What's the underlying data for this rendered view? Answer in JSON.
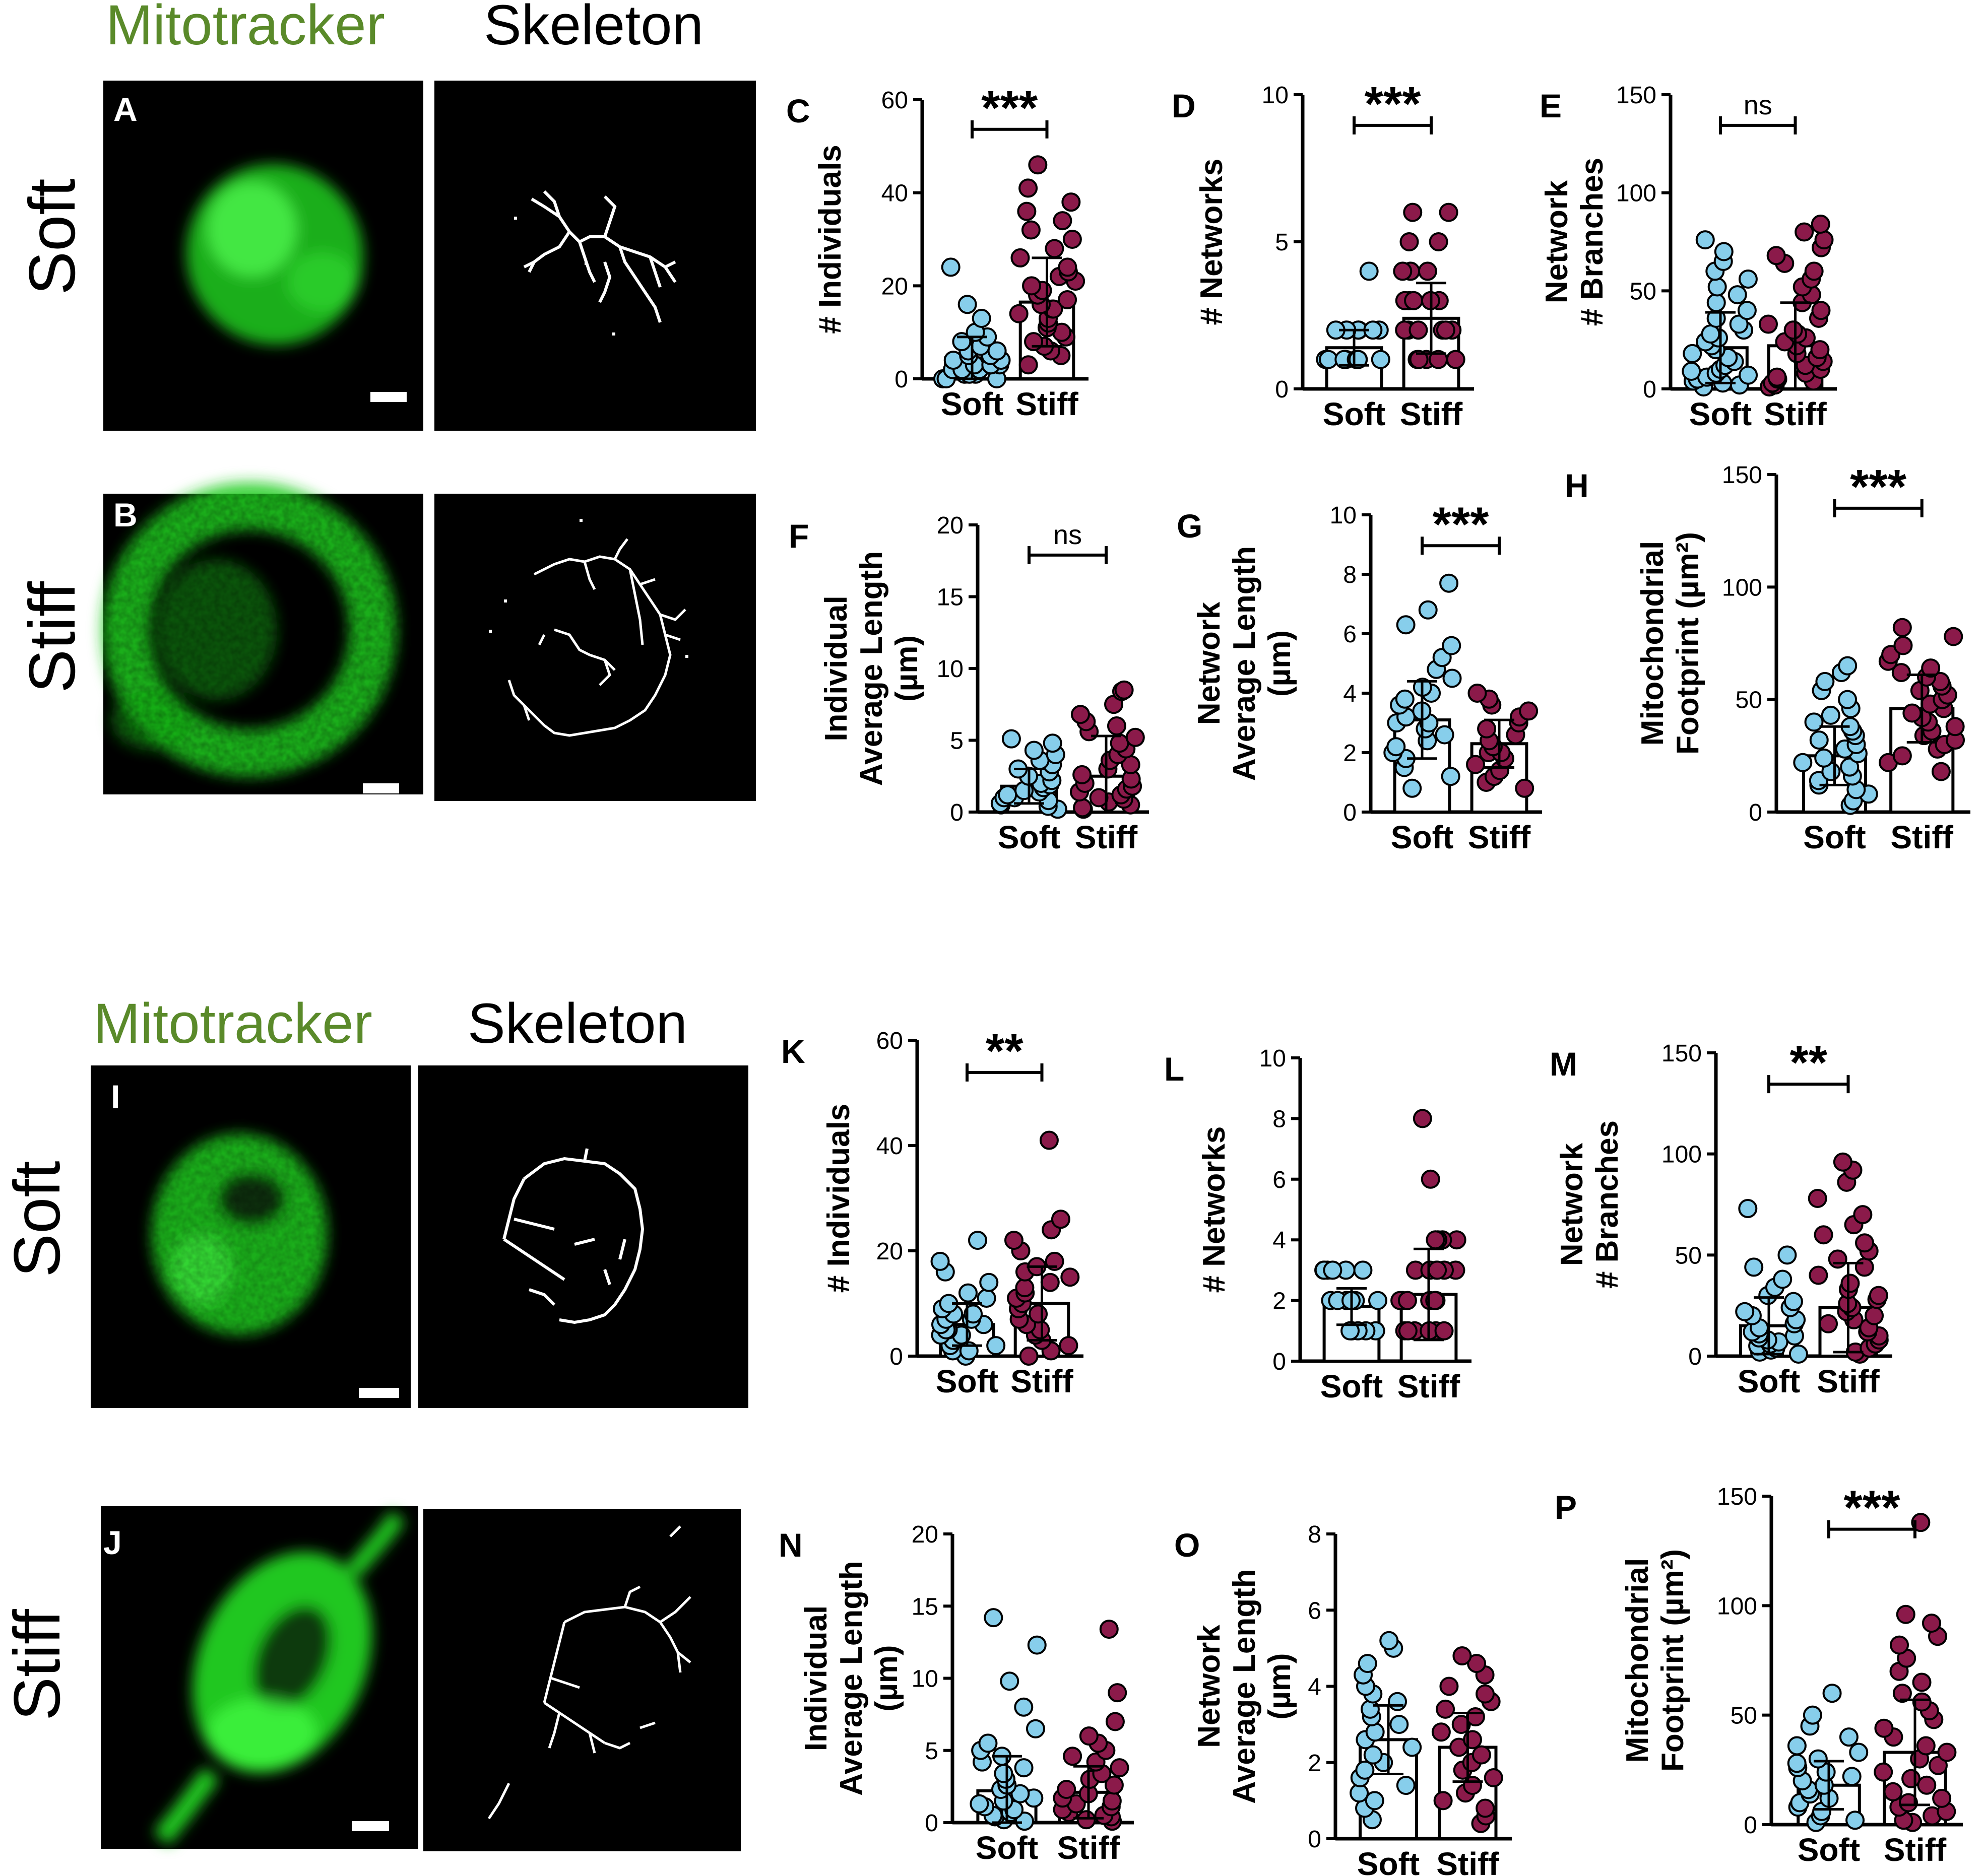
{
  "colors": {
    "mitotracker": "#5a8a2a",
    "soft_point": "#87ceeb",
    "stiff_point": "#8b1a4a",
    "fluor": "#22dd22"
  },
  "sections": [
    {
      "header_mito": "Mitotracker",
      "header_skel": "Skeleton",
      "rows": [
        {
          "row_label": "Soft",
          "panel_label": "A"
        },
        {
          "row_label": "Stiff",
          "panel_label": "B"
        }
      ]
    },
    {
      "header_mito": "Mitotracker",
      "header_skel": "Skeleton",
      "rows": [
        {
          "row_label": "Soft",
          "panel_label": "I"
        },
        {
          "row_label": "Stiff",
          "panel_label": "J"
        }
      ]
    }
  ],
  "chart_data": [
    {
      "panel": "C",
      "type": "scatter",
      "ylabel": [
        "# Individuals"
      ],
      "yticks": [
        0,
        20,
        40,
        60
      ],
      "ylim": [
        0,
        60
      ],
      "categories": [
        "Soft",
        "Stiff"
      ],
      "means": [
        4.5,
        16.5
      ],
      "sd": [
        4.5,
        9.5
      ],
      "sig": "***",
      "soft_points": [
        0,
        0,
        0,
        1,
        1,
        1,
        2,
        2,
        2,
        3,
        3,
        3,
        4,
        4,
        5,
        5,
        6,
        6,
        7,
        8,
        9,
        10,
        13,
        16,
        24
      ],
      "stiff_points": [
        3,
        5,
        6,
        7,
        8,
        9,
        10,
        11,
        12,
        13,
        14,
        15,
        15,
        16,
        17,
        18,
        19,
        20,
        21,
        22,
        23,
        24,
        26,
        28,
        30,
        32,
        34,
        36,
        38,
        41,
        46
      ]
    },
    {
      "panel": "D",
      "type": "scatter",
      "ylabel": [
        "# Networks"
      ],
      "yticks": [
        0,
        5,
        10
      ],
      "ylim": [
        0,
        10
      ],
      "categories": [
        "Soft",
        "Stiff"
      ],
      "means": [
        1.4,
        2.4
      ],
      "sd": [
        0.6,
        1.2
      ],
      "sig": "***",
      "soft_points": [
        1,
        1,
        1,
        1,
        1,
        1,
        1,
        1,
        2,
        2,
        2,
        2,
        2,
        2,
        4
      ],
      "stiff_points": [
        1,
        1,
        1,
        1,
        1,
        1,
        2,
        2,
        2,
        2,
        2,
        2,
        3,
        3,
        3,
        3,
        3,
        4,
        4,
        4,
        5,
        5,
        6,
        6
      ]
    },
    {
      "panel": "E",
      "type": "scatter",
      "ylabel": [
        "Network",
        "# Branches"
      ],
      "yticks": [
        0,
        50,
        100,
        150
      ],
      "ylim": [
        0,
        150
      ],
      "categories": [
        "Soft",
        "Stiff"
      ],
      "means": [
        21,
        22
      ],
      "sd": [
        18,
        22
      ],
      "sig": "ns",
      "soft_points": [
        1,
        2,
        3,
        4,
        5,
        6,
        7,
        8,
        9,
        10,
        12,
        14,
        16,
        18,
        20,
        22,
        24,
        26,
        28,
        30,
        33,
        36,
        40,
        44,
        48,
        52,
        56,
        60,
        65,
        70,
        76
      ],
      "stiff_points": [
        1,
        2,
        3,
        4,
        5,
        6,
        8,
        10,
        12,
        14,
        16,
        18,
        20,
        22,
        24,
        26,
        28,
        30,
        33,
        36,
        40,
        44,
        48,
        52,
        56,
        60,
        64,
        68,
        72,
        76,
        80,
        84
      ]
    },
    {
      "panel": "F",
      "type": "scatter",
      "ylabel": [
        "Individual",
        "Average Length",
        "(µm)"
      ],
      "yticks": [
        0,
        5,
        10,
        15,
        20
      ],
      "ylim": [
        0,
        20
      ],
      "categories": [
        "Soft",
        "Stiff"
      ],
      "means": [
        1.8,
        2.5
      ],
      "sd": [
        1.2,
        2.8
      ],
      "sig": "ns",
      "soft_points": [
        0.2,
        0.4,
        0.5,
        0.6,
        0.8,
        1,
        1,
        1.2,
        1.4,
        1.5,
        1.7,
        1.9,
        2,
        2.2,
        2.5,
        2.8,
        3,
        3.3,
        3.6,
        4,
        4.3,
        4.8,
        5.1
      ],
      "stiff_points": [
        0.2,
        0.3,
        0.5,
        0.7,
        0.9,
        1,
        1.2,
        1.4,
        1.6,
        1.8,
        2,
        2.3,
        2.6,
        3,
        3.3,
        3.6,
        4,
        4.4,
        4.8,
        5.2,
        5.6,
        6,
        6.3,
        6.8,
        7.5,
        8.4,
        8.5
      ]
    },
    {
      "panel": "G",
      "type": "scatter",
      "ylabel": [
        "Network",
        "Average Length",
        "(µm)"
      ],
      "yticks": [
        0,
        2,
        4,
        6,
        8,
        10
      ],
      "ylim": [
        0,
        10
      ],
      "categories": [
        "Soft",
        "Stiff"
      ],
      "means": [
        3.1,
        2.3
      ],
      "sd": [
        1.3,
        0.8
      ],
      "sig": "***",
      "soft_points": [
        0.8,
        1.2,
        1.5,
        1.8,
        2,
        2.2,
        2.4,
        2.6,
        2.8,
        3,
        3,
        3.2,
        3.4,
        3.6,
        3.8,
        4,
        4.2,
        4.5,
        4.8,
        5.2,
        5.6,
        6.3,
        6.8,
        7.7
      ],
      "stiff_points": [
        0.8,
        1,
        1.2,
        1.4,
        1.6,
        1.8,
        2,
        2,
        2.2,
        2.4,
        2.6,
        2.8,
        3,
        3.2,
        3.4,
        3.6,
        3.8,
        4
      ]
    },
    {
      "panel": "H",
      "type": "scatter",
      "ylabel": [
        "Mitochondrial",
        "Footprint (µm²)"
      ],
      "yticks": [
        0,
        50,
        100,
        150
      ],
      "ylim": [
        0,
        150
      ],
      "categories": [
        "Soft",
        "Stiff"
      ],
      "means": [
        25,
        46
      ],
      "sd": [
        13,
        15
      ],
      "sig": "***",
      "soft_points": [
        3,
        5,
        8,
        10,
        12,
        14,
        16,
        18,
        20,
        22,
        24,
        26,
        28,
        30,
        32,
        34,
        36,
        38,
        40,
        43,
        46,
        50,
        54,
        58,
        62,
        65
      ],
      "stiff_points": [
        18,
        22,
        25,
        28,
        30,
        32,
        34,
        36,
        38,
        40,
        42,
        44,
        46,
        48,
        50,
        52,
        54,
        56,
        58,
        60,
        62,
        64,
        67,
        70,
        74,
        78,
        82
      ]
    },
    {
      "panel": "K",
      "type": "scatter",
      "ylabel": [
        "# Individuals"
      ],
      "yticks": [
        0,
        20,
        40,
        60
      ],
      "ylim": [
        0,
        60
      ],
      "categories": [
        "Soft",
        "Stiff"
      ],
      "means": [
        6,
        10
      ],
      "sd": [
        4,
        7
      ],
      "sig": "**",
      "soft_points": [
        0,
        1,
        1,
        2,
        2,
        3,
        3,
        4,
        4,
        5,
        5,
        6,
        6,
        7,
        7,
        8,
        8,
        9,
        10,
        11,
        12,
        14,
        16,
        18,
        22
      ],
      "stiff_points": [
        0,
        1,
        2,
        3,
        4,
        5,
        6,
        7,
        8,
        9,
        10,
        11,
        12,
        13,
        14,
        15,
        16,
        17,
        18,
        20,
        22,
        24,
        26,
        41
      ]
    },
    {
      "panel": "L",
      "type": "scatter",
      "ylabel": [
        "# Networks"
      ],
      "yticks": [
        0,
        2,
        4,
        6,
        8,
        10
      ],
      "ylim": [
        0,
        10
      ],
      "categories": [
        "Soft",
        "Stiff"
      ],
      "means": [
        1.8,
        2.2
      ],
      "sd": [
        0.6,
        1.5
      ],
      "sig": "",
      "soft_points": [
        1,
        1,
        1,
        1,
        1,
        1,
        2,
        2,
        2,
        2,
        2,
        2,
        3,
        3,
        3,
        3,
        3,
        3
      ],
      "stiff_points": [
        1,
        1,
        1,
        1,
        1,
        1,
        2,
        2,
        2,
        2,
        2,
        2,
        3,
        3,
        3,
        3,
        3,
        3,
        4,
        4,
        4,
        4,
        6,
        8
      ]
    },
    {
      "panel": "M",
      "type": "scatter",
      "ylabel": [
        "Network",
        "# Branches"
      ],
      "yticks": [
        0,
        50,
        100,
        150
      ],
      "ylim": [
        0,
        150
      ],
      "categories": [
        "Soft",
        "Stiff"
      ],
      "means": [
        15,
        24
      ],
      "sd": [
        14,
        22
      ],
      "sig": "**",
      "soft_points": [
        1,
        2,
        3,
        4,
        5,
        6,
        7,
        8,
        9,
        10,
        11,
        12,
        14,
        16,
        18,
        20,
        22,
        24,
        27,
        30,
        34,
        38,
        44,
        50,
        73
      ],
      "stiff_points": [
        1,
        2,
        4,
        6,
        8,
        10,
        12,
        14,
        16,
        18,
        20,
        22,
        24,
        26,
        28,
        30,
        33,
        36,
        40,
        44,
        48,
        52,
        56,
        60,
        65,
        70,
        78,
        86,
        92,
        96
      ]
    },
    {
      "panel": "N",
      "type": "scatter",
      "ylabel": [
        "Individual",
        "Average Length",
        "(µm)"
      ],
      "yticks": [
        0,
        5,
        10,
        15,
        20
      ],
      "ylim": [
        0,
        20
      ],
      "categories": [
        "Soft",
        "Stiff"
      ],
      "means": [
        2.2,
        2.1
      ],
      "sd": [
        2.4,
        1.8
      ],
      "sig": "",
      "soft_points": [
        0.1,
        0.2,
        0.4,
        0.5,
        0.7,
        0.9,
        1.1,
        1.3,
        1.5,
        1.7,
        2,
        2.3,
        2.6,
        3,
        3.4,
        3.8,
        4.2,
        4.6,
        5,
        5.5,
        6.5,
        8,
        9.8,
        12.3,
        14.2
      ],
      "stiff_points": [
        0.1,
        0.2,
        0.4,
        0.5,
        0.7,
        0.9,
        1.1,
        1.3,
        1.5,
        1.7,
        2,
        2.3,
        2.6,
        3,
        3.4,
        3.8,
        4.2,
        4.6,
        5,
        5.5,
        6,
        7,
        9,
        13.4
      ]
    },
    {
      "panel": "O",
      "type": "scatter",
      "ylabel": [
        "Network",
        "Average Length",
        "(µm)"
      ],
      "yticks": [
        0,
        2,
        4,
        6,
        8
      ],
      "ylim": [
        0,
        8
      ],
      "categories": [
        "Soft",
        "Stiff"
      ],
      "means": [
        2.6,
        2.4
      ],
      "sd": [
        0.9,
        0.9
      ],
      "sig": "",
      "soft_points": [
        0.5,
        0.8,
        1,
        1.2,
        1.4,
        1.6,
        1.8,
        2,
        2.2,
        2.4,
        2.6,
        2.8,
        3,
        3.2,
        3.4,
        3.6,
        3.8,
        4,
        4.3,
        4.6,
        5,
        5.2
      ],
      "stiff_points": [
        0.4,
        0.6,
        0.8,
        1,
        1.2,
        1.4,
        1.6,
        1.8,
        2,
        2.2,
        2.4,
        2.6,
        2.8,
        3,
        3.2,
        3.4,
        3.6,
        3.8,
        4,
        4.3,
        4.6,
        4.8
      ]
    },
    {
      "panel": "P",
      "type": "scatter",
      "ylabel": [
        "Mitochondrial",
        "Footprint (µm²)"
      ],
      "yticks": [
        0,
        50,
        100,
        150
      ],
      "ylim": [
        0,
        150
      ],
      "categories": [
        "Soft",
        "Stiff"
      ],
      "means": [
        18,
        33
      ],
      "sd": [
        11,
        24
      ],
      "sig": "***",
      "soft_points": [
        1,
        2,
        4,
        6,
        8,
        10,
        12,
        14,
        16,
        18,
        20,
        22,
        24,
        26,
        28,
        30,
        33,
        36,
        40,
        45,
        50,
        60
      ],
      "stiff_points": [
        1,
        2,
        4,
        6,
        8,
        10,
        12,
        15,
        18,
        21,
        24,
        27,
        30,
        33,
        36,
        40,
        44,
        48,
        52,
        56,
        60,
        65,
        70,
        76,
        82,
        86,
        92,
        96,
        138
      ]
    }
  ]
}
